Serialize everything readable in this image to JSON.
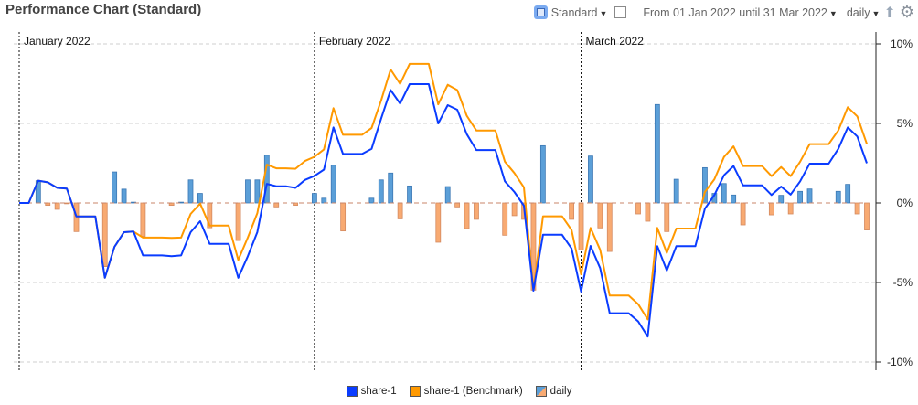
{
  "header": {
    "title": "Performance Chart (Standard)",
    "view_label": "Standard",
    "range_label": "From 01 Jan 2022 until 31 Mar 2022",
    "interval_label": "daily",
    "icons": [
      "standard-view-icon",
      "window-icon",
      "export-icon",
      "gear-icon"
    ]
  },
  "chart_data": {
    "type": "line",
    "title": "",
    "xlabel": "",
    "ylabel": "",
    "yaxis_position": "right",
    "ylim": [
      -10.5,
      10.5
    ],
    "yticks": [
      10,
      5,
      0,
      -5,
      -10
    ],
    "ytick_labels": [
      "10%",
      "5%",
      "0%",
      "-5%",
      "-10%"
    ],
    "grid": true,
    "month_labels": [
      "January 2022",
      "February 2022",
      "March 2022"
    ],
    "month_starts": [
      "2022-01-01",
      "2022-02-01",
      "2022-03-01"
    ],
    "legend_position": "bottom",
    "colors": {
      "share": "#0a3cff",
      "benchmark": "#ff9900",
      "daily_pos": "#5b9fd8",
      "daily_neg": "#f8aa72",
      "zero_line": "#c9856a"
    },
    "dates": [
      "2022-01-01",
      "2022-01-02",
      "2022-01-03",
      "2022-01-04",
      "2022-01-05",
      "2022-01-06",
      "2022-01-07",
      "2022-01-08",
      "2022-01-09",
      "2022-01-10",
      "2022-01-11",
      "2022-01-12",
      "2022-01-13",
      "2022-01-14",
      "2022-01-15",
      "2022-01-16",
      "2022-01-17",
      "2022-01-18",
      "2022-01-19",
      "2022-01-20",
      "2022-01-21",
      "2022-01-22",
      "2022-01-23",
      "2022-01-24",
      "2022-01-25",
      "2022-01-26",
      "2022-01-27",
      "2022-01-28",
      "2022-01-29",
      "2022-01-30",
      "2022-01-31",
      "2022-02-01",
      "2022-02-02",
      "2022-02-03",
      "2022-02-04",
      "2022-02-05",
      "2022-02-06",
      "2022-02-07",
      "2022-02-08",
      "2022-02-09",
      "2022-02-10",
      "2022-02-11",
      "2022-02-12",
      "2022-02-13",
      "2022-02-14",
      "2022-02-15",
      "2022-02-16",
      "2022-02-17",
      "2022-02-18",
      "2022-02-19",
      "2022-02-20",
      "2022-02-21",
      "2022-02-22",
      "2022-02-23",
      "2022-02-24",
      "2022-02-25",
      "2022-02-26",
      "2022-02-27",
      "2022-02-28",
      "2022-03-01",
      "2022-03-02",
      "2022-03-03",
      "2022-03-04",
      "2022-03-05",
      "2022-03-06",
      "2022-03-07",
      "2022-03-08",
      "2022-03-09",
      "2022-03-10",
      "2022-03-11",
      "2022-03-12",
      "2022-03-13",
      "2022-03-14",
      "2022-03-15",
      "2022-03-16",
      "2022-03-17",
      "2022-03-18",
      "2022-03-19",
      "2022-03-20",
      "2022-03-21",
      "2022-03-22",
      "2022-03-23",
      "2022-03-24",
      "2022-03-25",
      "2022-03-26",
      "2022-03-27",
      "2022-03-28",
      "2022-03-29",
      "2022-03-30",
      "2022-03-31"
    ],
    "series": [
      {
        "name": "share-1",
        "values": [
          0,
          0,
          1.4,
          1.3,
          0.95,
          0.9,
          -0.85,
          -0.85,
          -0.85,
          -4.7,
          -2.76,
          -1.84,
          -1.8,
          -3.3,
          -3.3,
          -3.3,
          -3.35,
          -3.3,
          -1.84,
          -1.15,
          -2.57,
          -2.57,
          -2.57,
          -4.7,
          -3.35,
          -1.84,
          1.2,
          1.05,
          1.05,
          0.95,
          1.45,
          1.7,
          2.1,
          4.75,
          3.08,
          3.08,
          3.08,
          3.4,
          5.3,
          7.1,
          6.25,
          7.47,
          7.47,
          7.47,
          5.0,
          6.15,
          5.86,
          4.33,
          3.33,
          3.33,
          3.33,
          1.36,
          0.69,
          -0.17,
          -5.52,
          -2.0,
          -2.0,
          -2.0,
          -2.86,
          -5.57,
          -2.7,
          -4.1,
          -6.93,
          -6.93,
          -6.93,
          -7.45,
          -8.4,
          -2.72,
          -4.25,
          -2.72,
          -2.72,
          -2.72,
          -0.36,
          0.5,
          1.74,
          2.32,
          1.11,
          1.11,
          1.11,
          0.5,
          1.03,
          0.53,
          1.36,
          2.47,
          2.47,
          2.47,
          3.4,
          4.75,
          4.18,
          2.5
        ]
      },
      {
        "name": "share-1 (Benchmark)",
        "values": [
          0,
          0,
          1.4,
          1.3,
          0.95,
          0.9,
          -0.85,
          -0.85,
          -0.85,
          -4.7,
          -2.76,
          -1.84,
          -1.8,
          -2.18,
          -2.18,
          -2.18,
          -2.2,
          -2.18,
          -0.69,
          -0.04,
          -1.42,
          -1.42,
          -1.42,
          -3.58,
          -2.18,
          -0.65,
          2.41,
          2.18,
          2.18,
          2.15,
          2.64,
          2.9,
          3.37,
          5.96,
          4.29,
          4.29,
          4.29,
          4.71,
          6.44,
          8.39,
          7.49,
          8.74,
          8.74,
          8.74,
          6.2,
          7.43,
          7.1,
          5.48,
          4.56,
          4.56,
          4.56,
          2.6,
          1.88,
          0.98,
          -5.44,
          -0.84,
          -0.84,
          -0.84,
          -1.7,
          -4.48,
          -1.57,
          -2.95,
          -5.82,
          -5.82,
          -5.82,
          -6.36,
          -7.32,
          -1.57,
          -3.14,
          -1.61,
          -1.61,
          -1.61,
          0.69,
          1.49,
          2.89,
          3.56,
          2.32,
          2.32,
          2.32,
          1.69,
          2.26,
          1.69,
          2.6,
          3.7,
          3.7,
          3.7,
          4.56,
          6.02,
          5.44,
          3.72
        ]
      },
      {
        "name": "daily",
        "type": "bar",
        "values": [
          0,
          0,
          1.4,
          -0.15,
          -0.4,
          -0.05,
          -1.8,
          0,
          0,
          -4.0,
          1.95,
          0.87,
          0.05,
          -2.1,
          0,
          0,
          -0.15,
          0.05,
          1.45,
          0.6,
          -1.56,
          0,
          0,
          -2.36,
          1.45,
          1.45,
          3.0,
          -0.25,
          0,
          -0.15,
          0,
          0.6,
          0.3,
          2.37,
          -1.76,
          0,
          0,
          0.3,
          1.45,
          1.88,
          -1.0,
          1.07,
          0,
          0,
          -2.47,
          1.03,
          -0.25,
          -1.61,
          -1.03,
          0,
          0,
          -2.03,
          -0.8,
          -1.03,
          -5.48,
          3.6,
          0,
          0,
          -1.03,
          -2.95,
          2.95,
          -1.57,
          -3.05,
          0,
          0,
          -0.69,
          -1.15,
          6.19,
          -1.8,
          1.49,
          0,
          0,
          2.22,
          0.6,
          1.22,
          0.5,
          -1.38,
          0,
          0,
          -0.75,
          0.48,
          -0.69,
          0.73,
          0.88,
          0,
          0,
          0.73,
          1.17,
          -0.69,
          -1.7
        ]
      }
    ]
  }
}
